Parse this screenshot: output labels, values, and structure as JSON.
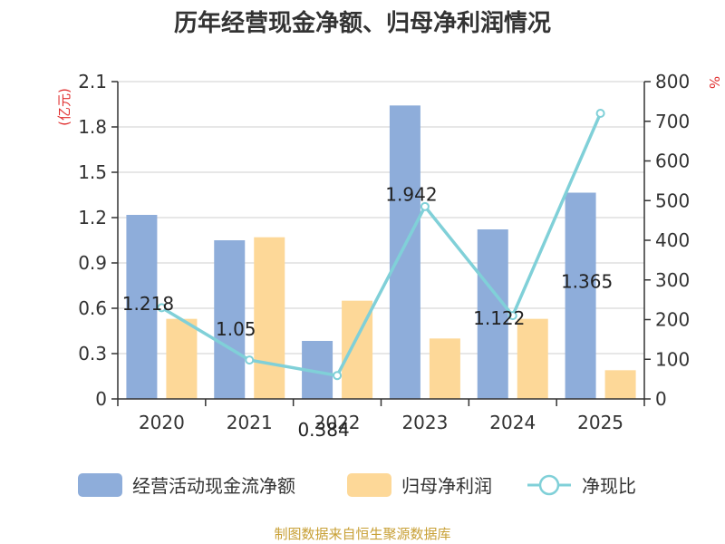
{
  "chart_data": {
    "type": "bar",
    "title": "历年经营现金净额、归母净利润情况",
    "categories": [
      "2020",
      "2021",
      "2022",
      "2023",
      "2024",
      "2025"
    ],
    "y_left": {
      "unit": "(亿元)",
      "ylim": [
        0,
        2.1
      ],
      "ticks": [
        "0",
        "0.3",
        "0.6",
        "0.9",
        "1.2",
        "1.5",
        "1.8",
        "2.1"
      ]
    },
    "y_right": {
      "unit": "%",
      "ylim": [
        0,
        800
      ],
      "ticks": [
        "0",
        "100",
        "200",
        "300",
        "400",
        "500",
        "600",
        "700",
        "800"
      ]
    },
    "series": [
      {
        "name": "经营活动现金流净额",
        "kind": "bar",
        "axis": "left",
        "color": "#8eadda",
        "values": [
          1.218,
          1.05,
          0.384,
          1.942,
          1.122,
          1.365
        ],
        "labels": [
          "1.218",
          "1.05",
          "0.384",
          "1.942",
          "1.122",
          "1.365"
        ]
      },
      {
        "name": "归母净利润",
        "kind": "bar",
        "axis": "left",
        "color": "#fdd898",
        "values": [
          0.53,
          1.07,
          0.65,
          0.4,
          0.53,
          0.19
        ]
      },
      {
        "name": "净现比",
        "kind": "line",
        "axis": "right",
        "color": "#80d0d8",
        "values": [
          230,
          98,
          59,
          485,
          210,
          720
        ]
      }
    ],
    "grid": true,
    "legend_position": "bottom"
  },
  "source": "制图数据来自恒生聚源数据库"
}
